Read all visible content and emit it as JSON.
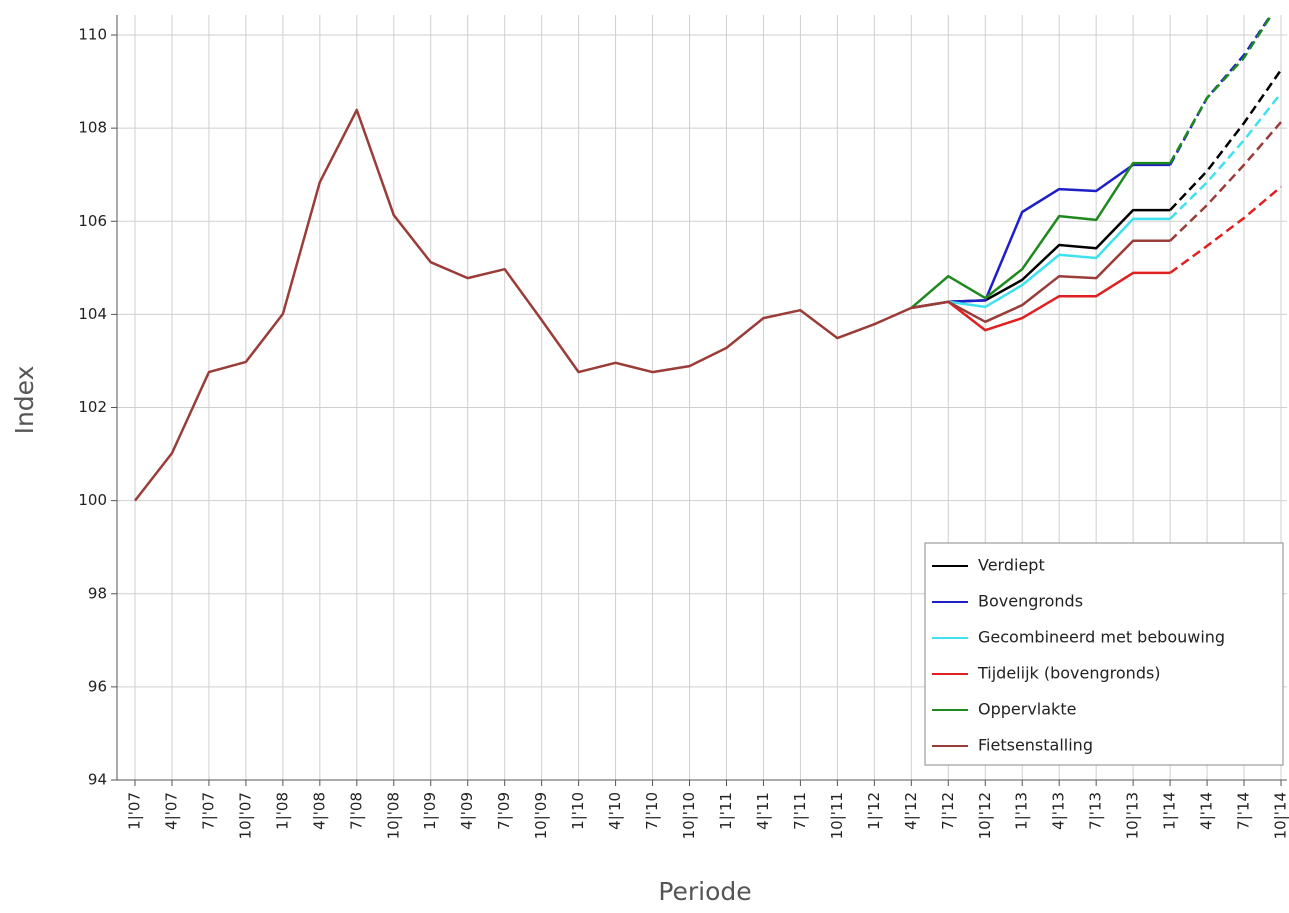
{
  "chart_data": {
    "type": "line",
    "x_label": "Periode",
    "y_label": "Index",
    "categories": [
      "1|'07",
      "4|'07",
      "7|'07",
      "10|'07",
      "1|'08",
      "4|'08",
      "7|'08",
      "10|'08",
      "1|'09",
      "4|'09",
      "7|'09",
      "10|'09",
      "1|'10",
      "4|'10",
      "7|'10",
      "10|'10",
      "1|'11",
      "4|'11",
      "7|'11",
      "10|'11",
      "1|'12",
      "4|'12",
      "7|'12",
      "10|'12",
      "1|'13",
      "4|'13",
      "7|'13",
      "10|'13",
      "1|'14",
      "4|'14",
      "7|'14",
      "10|'14"
    ],
    "dash_from": "1|'14",
    "series": [
      {
        "name": "Verdiept",
        "color": "#000000",
        "values": [
          null,
          null,
          null,
          null,
          null,
          null,
          null,
          null,
          null,
          null,
          null,
          null,
          null,
          null,
          null,
          null,
          null,
          null,
          null,
          null,
          null,
          104.14,
          104.27,
          104.3,
          104.74,
          105.49,
          105.42,
          106.24,
          106.24,
          107.08,
          108.11,
          109.25
        ]
      },
      {
        "name": "Bovengronds",
        "color": "#1f1fc8",
        "values": [
          null,
          null,
          null,
          null,
          null,
          null,
          null,
          null,
          null,
          null,
          null,
          null,
          null,
          null,
          null,
          null,
          null,
          null,
          null,
          null,
          null,
          104.14,
          104.27,
          104.3,
          106.2,
          106.69,
          106.65,
          107.21,
          107.21,
          108.65,
          109.57,
          110.75
        ]
      },
      {
        "name": "Gecombineerd met bebouwing",
        "color": "#3fe0f0",
        "values": [
          null,
          null,
          null,
          null,
          null,
          null,
          null,
          null,
          null,
          null,
          null,
          null,
          null,
          null,
          null,
          null,
          null,
          null,
          null,
          null,
          null,
          104.14,
          104.27,
          104.16,
          104.63,
          105.28,
          105.21,
          106.05,
          106.05,
          106.84,
          107.74,
          108.75
        ]
      },
      {
        "name": "Tijdelijk (bovengronds)",
        "color": "#e02020",
        "values": [
          null,
          null,
          null,
          null,
          null,
          null,
          null,
          null,
          null,
          null,
          null,
          null,
          null,
          null,
          null,
          null,
          null,
          null,
          null,
          null,
          null,
          104.14,
          104.27,
          103.66,
          103.92,
          104.39,
          104.39,
          104.89,
          104.89,
          105.47,
          106.07,
          106.74
        ]
      },
      {
        "name": "Oppervlakte",
        "color": "#1e8a1e",
        "values": [
          null,
          null,
          null,
          null,
          null,
          null,
          null,
          null,
          null,
          null,
          null,
          null,
          null,
          null,
          null,
          null,
          null,
          null,
          null,
          null,
          null,
          104.14,
          104.82,
          104.35,
          104.97,
          106.11,
          106.03,
          107.25,
          107.25,
          108.65,
          109.51,
          110.75
        ]
      },
      {
        "name": "Fietsenstalling",
        "color": "#9a3c38",
        "values": [
          100,
          101.02,
          102.76,
          102.98,
          104.01,
          106.84,
          108.39,
          106.13,
          105.12,
          104.78,
          104.97,
          103.88,
          102.76,
          102.96,
          102.76,
          102.89,
          103.28,
          103.92,
          104.09,
          103.49,
          103.79,
          104.14,
          104.27,
          103.84,
          104.2,
          104.82,
          104.78,
          105.58,
          105.58,
          106.35,
          107.21,
          108.13
        ]
      }
    ],
    "ylim": [
      94,
      110.43
    ],
    "yticks": [
      94,
      96,
      98,
      100,
      102,
      104,
      106,
      108,
      110
    ],
    "grid": true,
    "legend": "lower right"
  }
}
